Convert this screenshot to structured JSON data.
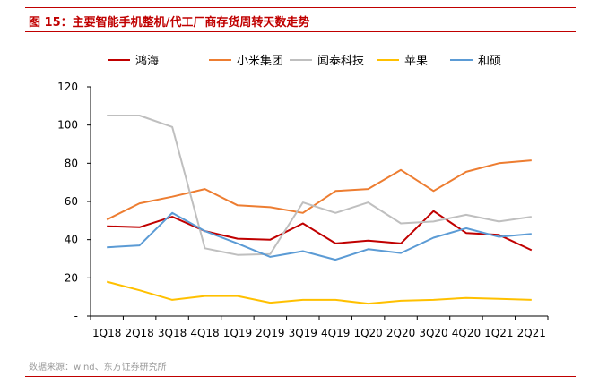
{
  "header": {
    "title": "图 15：主要智能手机整机/代工厂商存货周转天数走势"
  },
  "footer": {
    "source": "数据来源：wind、东方证券研究所"
  },
  "chart_data": {
    "type": "line",
    "title": "",
    "xlabel": "",
    "ylabel": "",
    "categories": [
      "1Q18",
      "2Q18",
      "3Q18",
      "4Q18",
      "1Q19",
      "2Q19",
      "3Q19",
      "4Q19",
      "1Q20",
      "2Q20",
      "3Q20",
      "4Q20",
      "1Q21",
      "2Q21"
    ],
    "ylim": [
      0,
      120
    ],
    "yticks": [
      0,
      20,
      40,
      60,
      80,
      100,
      120
    ],
    "ytick_labels": [
      "-",
      "20",
      "40",
      "60",
      "80",
      "100",
      "120"
    ],
    "grid": false,
    "legend_position": "top",
    "series": [
      {
        "name": "鸿海",
        "color": "#c00000",
        "values": [
          47,
          46.5,
          52,
          44.5,
          40.5,
          40,
          48.5,
          38,
          39.5,
          38,
          55,
          43.5,
          42.5,
          34.5
        ]
      },
      {
        "name": "小米集团",
        "color": "#ed7d31",
        "values": [
          50.5,
          59,
          62.5,
          66.5,
          58,
          57,
          54,
          65.5,
          66.5,
          76.5,
          65.5,
          75.5,
          80,
          81.5
        ]
      },
      {
        "name": "闻泰科技",
        "color": "#bfbfbf",
        "values": [
          105,
          105,
          99,
          35.5,
          32,
          32.5,
          59.5,
          54,
          59.5,
          48.5,
          49.5,
          53,
          49.5,
          52
        ]
      },
      {
        "name": "苹果",
        "color": "#ffc000",
        "values": [
          18,
          13.5,
          8.5,
          10.5,
          10.5,
          7,
          8.5,
          8.5,
          6.5,
          8,
          8.5,
          9.5,
          9,
          8.5
        ]
      },
      {
        "name": "和硕",
        "color": "#5b9bd5",
        "values": [
          36,
          37,
          54,
          44.5,
          38,
          31,
          34,
          29.5,
          35,
          33,
          41,
          46,
          41.5,
          43
        ]
      }
    ]
  }
}
